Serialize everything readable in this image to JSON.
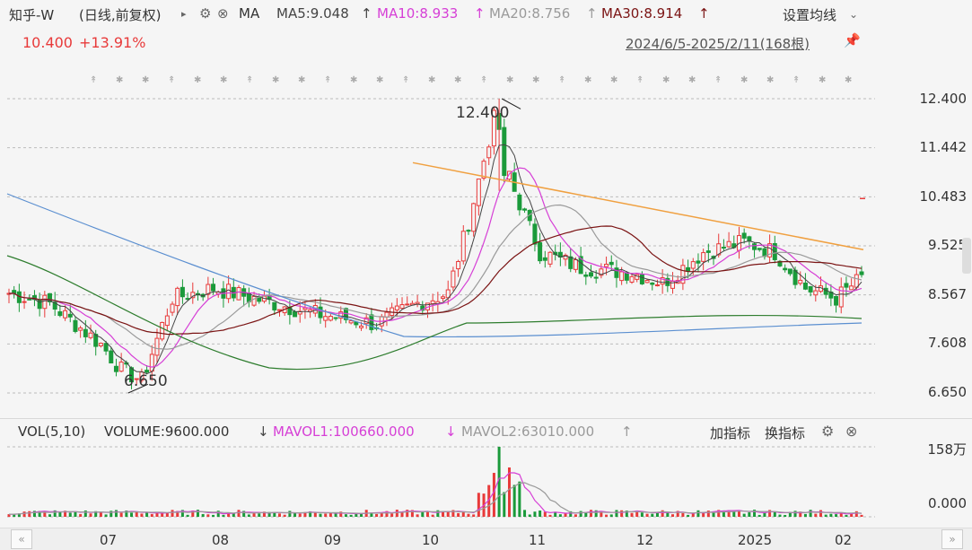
{
  "header": {
    "title": "知乎-W",
    "mode": "(日线,前复权)",
    "ma_label": "MA",
    "ma5": "MA5:9.048",
    "ma10": "MA10:8.933",
    "ma20": "MA20:8.756",
    "ma30": "MA30:8.914",
    "settings": "设置均线",
    "price": "10.400",
    "change": "+13.91%",
    "range": "2024/6/5-2025/2/11(168根)"
  },
  "price_axis": [
    "12.400",
    "11.442",
    "10.483",
    "9.525",
    "8.567",
    "7.608",
    "6.650"
  ],
  "annotations": {
    "high": "12.400",
    "low": "6.650"
  },
  "volume_panel": {
    "vol_label": "VOL(5,10)",
    "volume": "VOLUME:9600.000",
    "mavol1": "MAVOL1:100660.000",
    "mavol2": "MAVOL2:63010.000",
    "add_indicator": "加指标",
    "switch_indicator": "换指标",
    "axis_top": "158万",
    "axis_bottom": "0.000"
  },
  "months": [
    "07",
    "08",
    "09",
    "10",
    "11",
    "12",
    "2025",
    "02"
  ],
  "colors": {
    "up": "#e83a3a",
    "down": "#1a9a3a",
    "ma5": "#444444",
    "ma10": "#d63fd6",
    "ma20": "#9a9a9a",
    "ma30": "#7b1414"
  }
}
